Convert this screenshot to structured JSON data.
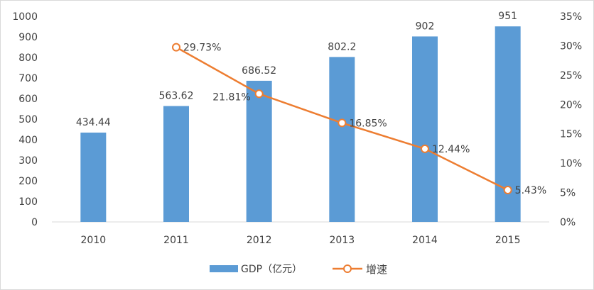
{
  "chart_data": {
    "type": "bar+line",
    "title": "",
    "categories": [
      "2010",
      "2011",
      "2012",
      "2013",
      "2014",
      "2015"
    ],
    "series": [
      {
        "name": "GDP（亿元）",
        "type": "bar",
        "axis": "left",
        "color": "#5b9bd5",
        "values": [
          434.44,
          563.62,
          686.52,
          802.2,
          902,
          951
        ],
        "labels": [
          "434.44",
          "563.62",
          "686.52",
          "802.2",
          "902",
          "951"
        ]
      },
      {
        "name": "增速",
        "type": "line",
        "axis": "right",
        "color": "#ed7d31",
        "values": [
          null,
          29.73,
          21.81,
          16.85,
          12.44,
          5.43
        ],
        "labels": [
          "",
          "29.73%",
          "21.81%",
          "16.85%",
          "12.44%",
          "5.43%"
        ]
      }
    ],
    "y_left": {
      "min": 0,
      "max": 1000,
      "ticks": [
        "0",
        "100",
        "200",
        "300",
        "400",
        "500",
        "600",
        "700",
        "800",
        "900",
        "1000"
      ]
    },
    "y_right": {
      "min": 0,
      "max": 35,
      "ticks": [
        "0%",
        "5%",
        "10%",
        "15%",
        "20%",
        "25%",
        "30%",
        "35%"
      ]
    },
    "grid": false,
    "legend": "bottom"
  }
}
